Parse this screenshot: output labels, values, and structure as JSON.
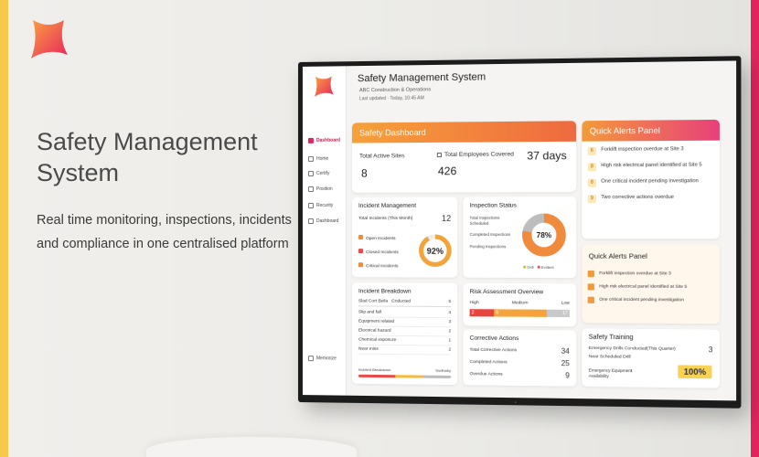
{
  "hero": {
    "title": "Safety Management System",
    "subtitle": "Real time monitoring, inspections, incidents and compliance in one centralised platform"
  },
  "colors": {
    "accent_yellow": "#f7c84a",
    "accent_pink": "#e0245e",
    "orange": "#f39a3b"
  },
  "app": {
    "title": "Safety Management System",
    "org": "ABC Construction & Operations",
    "updated": "Last updated · Today, 10:45 AM"
  },
  "sidebar": {
    "items": [
      {
        "label": "Dashboard",
        "icon": "dashboard-icon"
      },
      {
        "label": "Home",
        "icon": "home-icon"
      },
      {
        "label": "Certify",
        "icon": "certify-icon"
      },
      {
        "label": "Position",
        "icon": "position-icon"
      },
      {
        "label": "Recurity",
        "icon": "security-icon"
      },
      {
        "label": "Dashboard",
        "icon": "dashboard-icon"
      }
    ],
    "footer_label": "Memorize"
  },
  "dashboard": {
    "banner": "Safety Dashboard",
    "active_sites_label": "Total Active Sites",
    "active_sites_value": "8",
    "employees_label": "Total Employees Covered",
    "employees_value": "426",
    "days_value": "37 days"
  },
  "incident_mgmt": {
    "title": "Incident Management",
    "total_label": "Total Incidents (This Month)",
    "total_value": "12",
    "open_label": "Open Incidents",
    "closed_label": "Closed Incidents",
    "critical_label": "Critical Incidents",
    "gauge_value": "92%",
    "gauge_fraction": 0.92
  },
  "inspection": {
    "title": "Inspection Status",
    "rows": [
      "Total Inspections Scheduled",
      "Completed Inspections",
      "Pending Inspections"
    ],
    "donut_value": "78%",
    "donut_fraction": 0.78,
    "legend": [
      "Drill",
      "Evident"
    ]
  },
  "breakdown": {
    "title": "Incident Breakdown",
    "header_left": "Slad Cort Beila",
    "header_mid": "Cnducted",
    "header_value": "5",
    "rows": [
      {
        "label": "Slip and fall",
        "value": "4"
      },
      {
        "label": "Equipment related",
        "value": "3"
      },
      {
        "label": "Electrical hazard",
        "value": "2"
      },
      {
        "label": "Chemical exposure",
        "value": "1"
      },
      {
        "label": "Near miss",
        "value": "2"
      }
    ],
    "footer_left": "Incident Breakdown",
    "footer_right": "Sunlbaby"
  },
  "risk": {
    "title": "Risk Assessment Overview",
    "labels": [
      "High",
      "Medium",
      "Low"
    ],
    "values": [
      "2",
      "6",
      "17"
    ]
  },
  "corrective": {
    "title": "Corrective Actions",
    "rows": [
      {
        "label": "Total Corrective Actions",
        "value": "34"
      },
      {
        "label": "Completed Actions",
        "value": "25"
      },
      {
        "label": "Overdue Actions",
        "value": "9"
      }
    ]
  },
  "alerts_top": {
    "title": "Quick Alerts Panel",
    "items": [
      {
        "num": "6",
        "text": "Forklift inspection overdue at Site 3"
      },
      {
        "num": "8",
        "text": "High risk electrical panel identified at Site 5"
      },
      {
        "num": "8",
        "text": "One critical incident pending investigation"
      },
      {
        "num": "9",
        "text": "Two corrective actions overdue"
      }
    ]
  },
  "alerts_bottom": {
    "title": "Quick Alerts Panel",
    "items": [
      {
        "text": "Forklift inspection overdue at Site 3"
      },
      {
        "text": "High risk electrical panel identified at Site 5"
      },
      {
        "text": "One critical incident pending investigation"
      }
    ]
  },
  "training": {
    "title": "Safety Training",
    "row1_label": "Emergency Drills Conducted(This Quarter)",
    "row1_value": "3",
    "row2_label": "Near Scheduled Drill",
    "row3_label": "Emergency Equipment Availability",
    "row3_value": "100%"
  }
}
